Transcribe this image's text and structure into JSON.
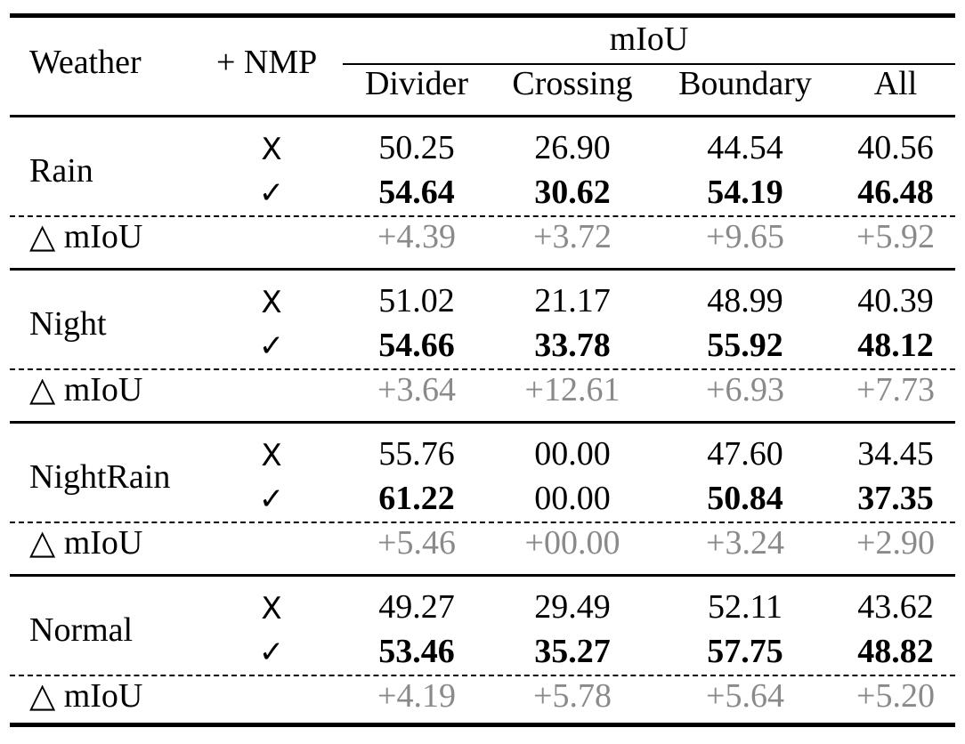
{
  "header": {
    "weather": "Weather",
    "nmp": "+ NMP",
    "metric": "mIoU",
    "columns": [
      "Divider",
      "Crossing",
      "Boundary",
      "All"
    ]
  },
  "delta_label": "△ mIoU",
  "marks": {
    "without": "X",
    "with": "✓"
  },
  "groups": [
    {
      "name": "Rain",
      "without": [
        "50.25",
        "26.90",
        "44.54",
        "40.56"
      ],
      "with": [
        "54.64",
        "30.62",
        "54.19",
        "46.48"
      ],
      "with_bold": [
        true,
        true,
        true,
        true
      ],
      "delta": [
        "+4.39",
        "+3.72",
        "+9.65",
        "+5.92"
      ]
    },
    {
      "name": "Night",
      "without": [
        "51.02",
        "21.17",
        "48.99",
        "40.39"
      ],
      "with": [
        "54.66",
        "33.78",
        "55.92",
        "48.12"
      ],
      "with_bold": [
        true,
        true,
        true,
        true
      ],
      "delta": [
        "+3.64",
        "+12.61",
        "+6.93",
        "+7.73"
      ]
    },
    {
      "name": "NightRain",
      "without": [
        "55.76",
        "00.00",
        "47.60",
        "34.45"
      ],
      "with": [
        "61.22",
        "00.00",
        "50.84",
        "37.35"
      ],
      "with_bold": [
        true,
        false,
        true,
        true
      ],
      "delta": [
        "+5.46",
        "+00.00",
        "+3.24",
        "+2.90"
      ]
    },
    {
      "name": "Normal",
      "without": [
        "49.27",
        "29.49",
        "52.11",
        "43.62"
      ],
      "with": [
        "53.46",
        "35.27",
        "57.75",
        "48.82"
      ],
      "with_bold": [
        true,
        true,
        true,
        true
      ],
      "delta": [
        "+4.19",
        "+5.78",
        "+5.64",
        "+5.20"
      ]
    }
  ]
}
